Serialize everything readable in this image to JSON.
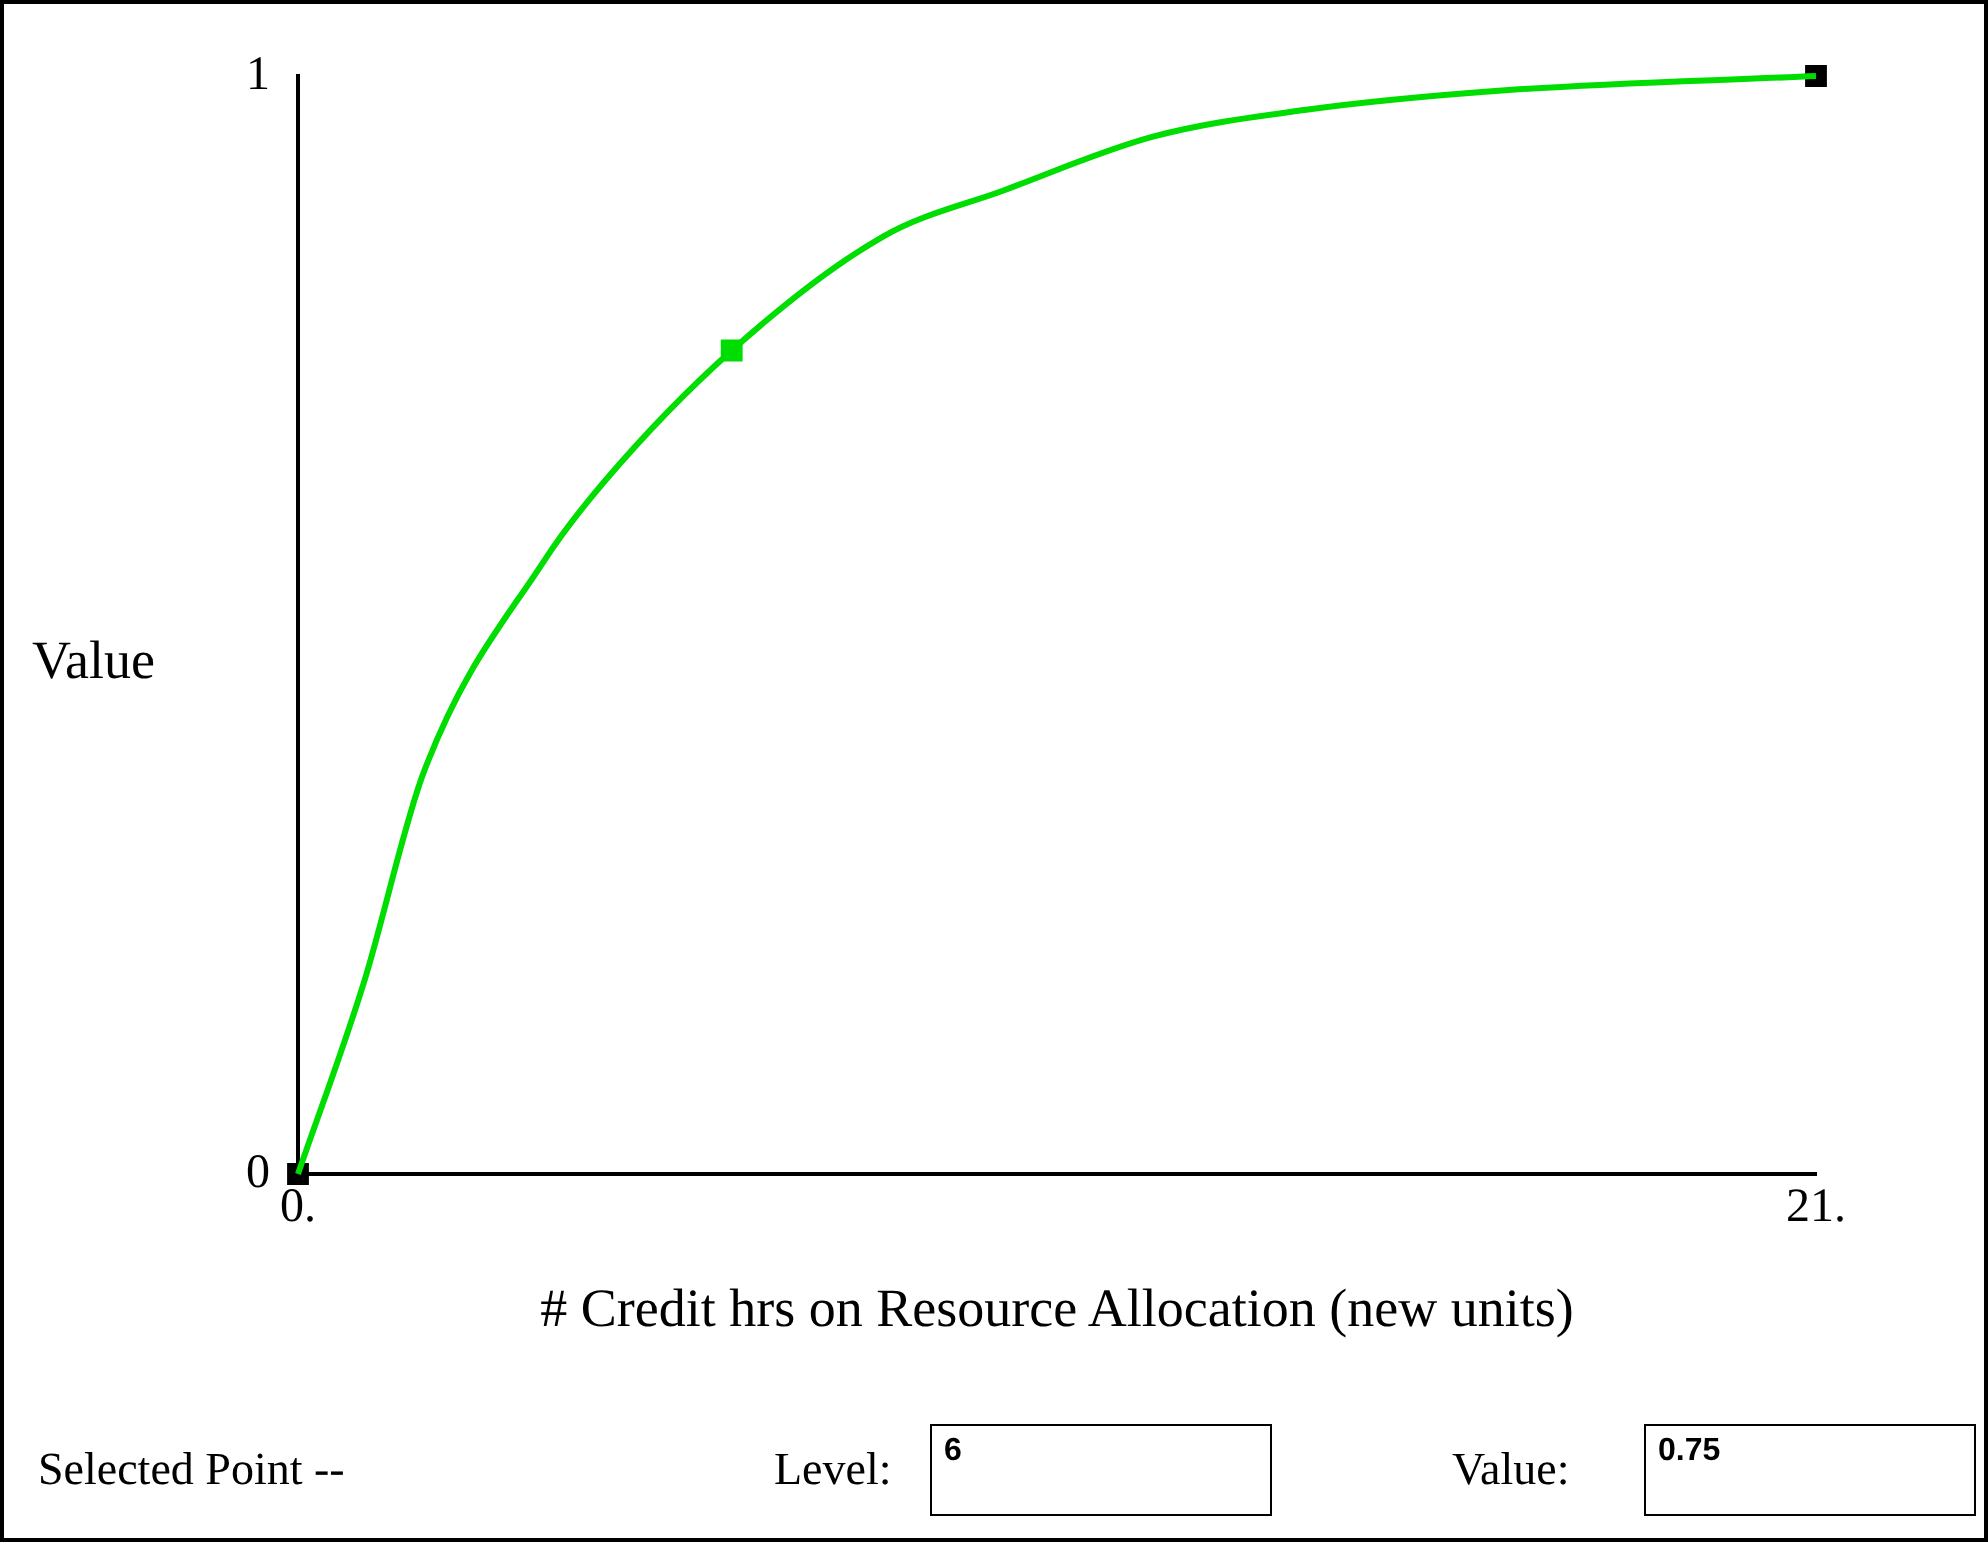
{
  "chart_data": {
    "type": "line",
    "xlabel": "# Credit hrs on Resource Allocation (new units)",
    "ylabel": "Value",
    "xlim": [
      0,
      21
    ],
    "xticks": [
      {
        "value": 0,
        "label": "0."
      },
      {
        "value": 21,
        "label": "21."
      }
    ],
    "ylim": [
      0,
      1
    ],
    "yticks": [
      0,
      1
    ],
    "grid": false,
    "legend": false,
    "series": [
      {
        "type": "line",
        "color": "#00dd00",
        "marker": "none",
        "x": [
          0,
          0.91,
          1.74,
          3.4,
          4.23,
          6,
          8.1,
          9.77,
          11.84,
          13.92,
          16.7,
          21
        ],
        "values": [
          0,
          0.174,
          0.366,
          0.558,
          0.63,
          0.75,
          0.854,
          0.896,
          0.945,
          0.969,
          0.987,
          1
        ]
      },
      {
        "type": "scatter",
        "colors": [
          "#000000",
          "#00dd00",
          "#000000"
        ],
        "marker": "square",
        "x": [
          0,
          6,
          21
        ],
        "values": [
          0,
          0.75,
          1
        ]
      }
    ],
    "annotations": [
      "Selected Point --",
      "Level:",
      "6",
      "Value:",
      "0.75"
    ]
  }
}
